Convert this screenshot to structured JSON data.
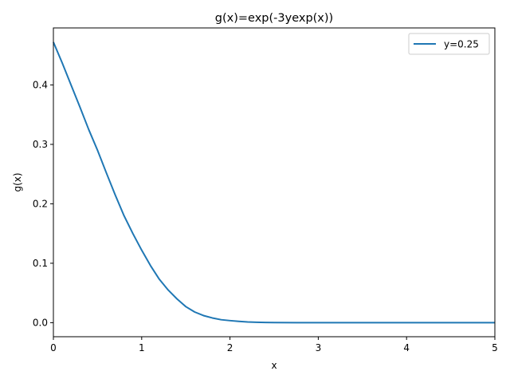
{
  "chart_data": {
    "type": "line",
    "title": "g(x)=exp(-3yexp(x))",
    "xlabel": "x",
    "ylabel": "g(x)",
    "xlim": [
      0,
      5
    ],
    "ylim": [
      -0.0236,
      0.4959
    ],
    "xticks": [
      0,
      1,
      2,
      3,
      4,
      5
    ],
    "yticks": [
      0.0,
      0.1,
      0.2,
      0.3,
      0.4
    ],
    "xtick_labels": [
      "0",
      "1",
      "2",
      "3",
      "4",
      "5"
    ],
    "ytick_labels": [
      "0.0",
      "0.1",
      "0.2",
      "0.3",
      "0.4"
    ],
    "grid": false,
    "legend_position": "top-right",
    "series": [
      {
        "name": "y=0.25",
        "color": "#1f77b4",
        "x": [
          0,
          0.1,
          0.2,
          0.3,
          0.4,
          0.5,
          0.6,
          0.7,
          0.8,
          0.9,
          1.0,
          1.1,
          1.2,
          1.3,
          1.4,
          1.5,
          1.6,
          1.7,
          1.8,
          1.9,
          2.0,
          2.1,
          2.2,
          2.3,
          2.4,
          2.5,
          2.75,
          3.0,
          3.5,
          4.0,
          4.5,
          5.0
        ],
        "y": [
          0.472,
          0.437,
          0.4,
          0.363,
          0.325,
          0.29,
          0.252,
          0.215,
          0.18,
          0.15,
          0.122,
          0.096,
          0.073,
          0.055,
          0.04,
          0.027,
          0.018,
          0.012,
          0.008,
          0.005,
          0.0035,
          0.0022,
          0.0012,
          0.0007,
          0.0004,
          0.0002,
          0.0001,
          0.0,
          0.0,
          0.0,
          0.0,
          0.0
        ]
      }
    ]
  }
}
